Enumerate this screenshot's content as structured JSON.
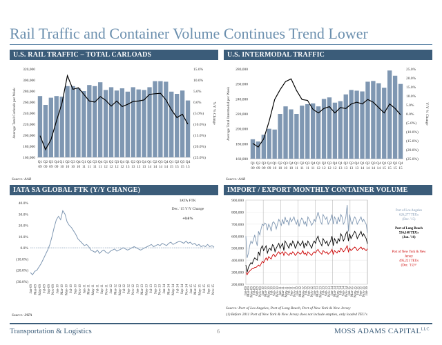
{
  "page": {
    "title": "Rail Traffic and Container Volume Continues Trend Lower",
    "footer_left": "Transportation & Logistics",
    "page_number": "6",
    "footer_right": "MOSS ADAMS CAPITAL",
    "footer_right_sup": "LLC"
  },
  "panels": {
    "rail": {
      "header": "U.S. RAIL TRAFFIC – TOTAL CARLOADS",
      "source": "Source: AAR"
    },
    "intermodal": {
      "header": "U.S. INTERMODAL TRAFFIC",
      "source": "Source: AAR"
    },
    "ftk": {
      "header": "IATA SA GLOBAL FTK (Y/Y CHANGE)",
      "source": "Source: IATA"
    },
    "container": {
      "header": "IMPORT / EXPORT MONTHLY CONTAINER VOLUME",
      "source": "Source: Port of Los Angeles, Port of Long Beach, Port of New York & New Jersey",
      "footnote": "(1) Before 2011 Port of New York & New Jersey does not include empties, only loaded TEU's"
    }
  },
  "colors": {
    "bar": "#7f97b2",
    "line": "#000000",
    "header": "#3b5c79",
    "title": "#6b8fae",
    "la": "#7f97b2",
    "lb": "#000000",
    "ny": "#cc0000"
  },
  "chart_data": [
    {
      "id": "rail",
      "type": "bar",
      "title": "U.S. RAIL TRAFFIC – TOTAL CARLOADS",
      "ylabel": "Average Total Carloads per Week",
      "y2label": "Y/Y % Change",
      "ylim": [
        160000,
        320000
      ],
      "y_ticks": [
        "160,000",
        "180,000",
        "200,000",
        "220,000",
        "240,000",
        "260,000",
        "280,000",
        "300,000",
        "320,000"
      ],
      "y2lim": [
        -25,
        15
      ],
      "y2_ticks": [
        "(25.0%)",
        "(20.0%)",
        "(15.0%)",
        "(10.0%)",
        "(5.0%)",
        "0.0%",
        "5.0%",
        "10.0%",
        "15.0%"
      ],
      "categories_top": [
        "Q1",
        "Q2",
        "Q3",
        "Q4",
        "Q1",
        "Q2",
        "Q3",
        "Q4",
        "Q1",
        "Q2",
        "Q3",
        "Q4",
        "Q1",
        "Q2",
        "Q3",
        "Q4",
        "Q1",
        "Q2",
        "Q3",
        "Q4",
        "Q1",
        "Q2",
        "Q3",
        "Q4",
        "Q1",
        "Q2",
        "Q3",
        "Q4"
      ],
      "categories_bottom": [
        "09",
        "09",
        "09",
        "09",
        "10",
        "10",
        "10",
        "10",
        "11",
        "11",
        "11",
        "11",
        "12",
        "12",
        "12",
        "12",
        "13",
        "13",
        "13",
        "13",
        "14",
        "14",
        "14",
        "14",
        "15",
        "15",
        "15",
        "15"
      ],
      "series": [
        {
          "type": "bar",
          "values": [
            271000,
            255000,
            268000,
            271000,
            270000,
            289000,
            289000,
            285000,
            280000,
            291000,
            289000,
            296000,
            282000,
            287000,
            281000,
            285000,
            279000,
            287000,
            283000,
            282000,
            287000,
            298000,
            298000,
            297000,
            279000,
            275000,
            281000,
            263000
          ]
        },
        {
          "type": "line",
          "axis": "y2",
          "values": [
            -15.2,
            -21.5,
            -17.0,
            -8.5,
            -0.5,
            12.0,
            5.8,
            6.5,
            3.5,
            0.5,
            0.0,
            2.5,
            0.8,
            -1.8,
            0.5,
            -2.0,
            -1.0,
            0.3,
            0.5,
            1.0,
            3.5,
            3.8,
            4.0,
            1.0,
            -3.5,
            -7.0,
            -5.5,
            -10.0
          ]
        }
      ]
    },
    {
      "id": "intermodal",
      "type": "bar",
      "title": "U.S. INTERMODAL TRAFFIC",
      "ylabel": "Average Total Intermodal per Week",
      "y2label": "Y/Y % Change",
      "ylim": [
        160000,
        280000
      ],
      "y_ticks": [
        "160,000",
        "180,000",
        "200,000",
        "220,000",
        "240,000",
        "260,000",
        "280,000"
      ],
      "y2lim": [
        -25,
        25
      ],
      "y2_ticks": [
        "(25.0%)",
        "(20.0%)",
        "(15.0%)",
        "(10.0%)",
        "(5.0%)",
        "0.0%",
        "5.0%",
        "10.0%",
        "15.0%",
        "20.0%",
        "25.0%"
      ],
      "categories_top": [
        "Q1",
        "Q2",
        "Q3",
        "Q4",
        "Q1",
        "Q2",
        "Q3",
        "Q4",
        "Q1",
        "Q2",
        "Q3",
        "Q4",
        "Q1",
        "Q2",
        "Q3",
        "Q4",
        "Q1",
        "Q2",
        "Q3",
        "Q4",
        "Q1",
        "Q2",
        "Q3",
        "Q4",
        "Q1",
        "Q2",
        "Q3",
        "Q4"
      ],
      "categories_bottom": [
        "09",
        "09",
        "09",
        "09",
        "10",
        "10",
        "10",
        "10",
        "11",
        "11",
        "11",
        "11",
        "12",
        "12",
        "12",
        "12",
        "13",
        "13",
        "13",
        "13",
        "14",
        "14",
        "14",
        "14",
        "15",
        "15",
        "15",
        "15"
      ],
      "series": [
        {
          "type": "bar",
          "values": [
            186000,
            183000,
            192000,
            200000,
            199000,
            220000,
            230000,
            226000,
            220000,
            231000,
            233000,
            234000,
            230000,
            240000,
            242000,
            235000,
            237000,
            246000,
            252000,
            251000,
            250000,
            263000,
            264000,
            261000,
            255000,
            278000,
            271000,
            260000
          ]
        },
        {
          "type": "line",
          "axis": "y2",
          "values": [
            -16.5,
            -18.5,
            -14.0,
            -4.0,
            8.0,
            13.5,
            18.0,
            19.5,
            13.0,
            8.0,
            7.5,
            2.5,
            0.5,
            3.0,
            4.0,
            0.5,
            3.5,
            3.0,
            5.5,
            6.5,
            5.5,
            8.0,
            6.5,
            3.5,
            0.5,
            5.5,
            3.0,
            -0.5
          ]
        }
      ]
    },
    {
      "id": "ftk",
      "type": "line",
      "title": "IATA SA GLOBAL FTK (Y/Y CHANGE)",
      "ylim": [
        -30,
        40
      ],
      "y_ticks": [
        "(30.0%)",
        "(20.0%)",
        "(10.0%)",
        "0.0%",
        "10.0%",
        "20.0%",
        "30.0%",
        "40.0%"
      ],
      "x_ticks": [
        "Jan-09",
        "Mar-09",
        "May-09",
        "Jul-09",
        "Sep-09",
        "Nov-09",
        "Jan-10",
        "Mar-10",
        "May-10",
        "Jul-10",
        "Sep-10",
        "Nov-10",
        "Jan-11",
        "Mar-11",
        "May-11",
        "Jul-11",
        "Sep-11",
        "Nov-11",
        "Jan-12",
        "Mar-12",
        "May-12",
        "Jul-12",
        "Sep-12",
        "Nov-12",
        "Jan-13",
        "Mar-13",
        "May-13",
        "Jul-13",
        "Sep-13",
        "Nov-13",
        "Jan-14",
        "Mar-14",
        "May-14",
        "Jul-14",
        "Sep-14",
        "Nov-14",
        "Jan-15",
        "Mar-15",
        "May-15",
        "Jul-15",
        "Sep-15",
        "Nov-15"
      ],
      "annotation": [
        "IATA FTK",
        "Dec. '15 Y/Y Change",
        "+0.6%"
      ],
      "series": [
        {
          "values": [
            -22,
            -24,
            -21,
            -20,
            -17,
            -14,
            -10,
            -6,
            -2,
            3,
            10,
            18,
            25,
            28,
            25,
            33,
            30,
            23,
            20,
            18,
            15,
            12,
            8,
            6,
            4,
            2,
            3,
            1,
            -2,
            -3,
            -4,
            -2,
            -5,
            -3,
            -2,
            -4,
            -5,
            -3,
            -2,
            -1,
            -3,
            -2,
            -1,
            0,
            -1,
            -2,
            -1,
            0,
            1,
            0,
            -1,
            -2,
            -1,
            0,
            1,
            2,
            3,
            1,
            2,
            3,
            2,
            4,
            3,
            2,
            4,
            5,
            3,
            4,
            5,
            6,
            5,
            4,
            6,
            4,
            5,
            3,
            4,
            2,
            3,
            1,
            2,
            1,
            3,
            1,
            2,
            0.6
          ]
        }
      ]
    },
    {
      "id": "container",
      "type": "line",
      "title": "IMPORT / EXPORT MONTHLY CONTAINER VOLUME",
      "ylim": [
        200000,
        900000
      ],
      "y_ticks": [
        "200,000",
        "300,000",
        "400,000",
        "500,000",
        "600,000",
        "700,000",
        "800,000",
        "900,000"
      ],
      "x_ticks": [
        "Jan-09",
        "Mar-09",
        "May-09",
        "Jul-09",
        "Sep-09",
        "Nov-09",
        "Jan-10",
        "Mar-10",
        "May-10",
        "Jul-10",
        "Sep-10",
        "Nov-10",
        "Jan-11",
        "Mar-11",
        "May-11",
        "Jul-11",
        "Sep-11",
        "Nov-11",
        "Jan-12",
        "Mar-12",
        "May-12",
        "Jul-12",
        "Sep-12",
        "Nov-12",
        "Jan-13",
        "Mar-13",
        "May-13",
        "Jul-13",
        "Sep-13",
        "Nov-13",
        "Jan-14",
        "Mar-14",
        "May-14",
        "Jul-14",
        "Sep-14",
        "Nov-14",
        "Jan-15",
        "Mar-15",
        "May-15",
        "Jul-15",
        "Sep-15",
        "Nov-15",
        "Jan-16"
      ],
      "annotations": [
        {
          "series": "la",
          "lines": [
            "Port of Los Angeles",
            "626,277 TEUs",
            "(Dec. '15)"
          ]
        },
        {
          "series": "lb",
          "lines": [
            "Port of Long Beach",
            "536,148 TEUs",
            "(Jan. '16)"
          ]
        },
        {
          "series": "ny",
          "lines": [
            "Port of New York & New",
            "Jersey",
            "495,221 TEUs",
            "(Dec. '15)⁽¹⁾"
          ]
        }
      ],
      "series": [
        {
          "key": "la",
          "values": [
            600000,
            420000,
            460000,
            520000,
            560000,
            540000,
            570000,
            610000,
            560000,
            520000,
            640000,
            610000,
            660000,
            700000,
            690000,
            710000,
            700000,
            650000,
            700000,
            680000,
            640000,
            710000,
            720000,
            700000,
            660000,
            700000,
            740000,
            720000,
            690000,
            740000,
            700000,
            760000,
            720000,
            730000,
            690000,
            750000,
            720000,
            740000,
            760000,
            720000,
            700000,
            740000,
            680000,
            720000,
            750000,
            740000,
            700000,
            720000,
            680000,
            760000,
            740000,
            720000,
            690000,
            710000,
            740000,
            720000,
            760000,
            800000,
            760000,
            720000,
            700000,
            780000,
            760000,
            740000,
            760000,
            700000,
            720000,
            740000,
            780000,
            700000,
            760000,
            740000,
            700000,
            760000,
            720000,
            780000,
            760000,
            700000,
            720000,
            760000,
            860000,
            640000,
            780000,
            720000,
            700000,
            740000,
            760000,
            740000,
            700000,
            720000,
            740000,
            760000,
            720000,
            740000,
            720000,
            700000,
            626277
          ]
        },
        {
          "key": "lb",
          "values": [
            360000,
            300000,
            340000,
            360000,
            380000,
            370000,
            400000,
            420000,
            410000,
            400000,
            470000,
            440000,
            500000,
            520000,
            480000,
            500000,
            520000,
            460000,
            490000,
            500000,
            480000,
            530000,
            520000,
            470000,
            500000,
            520000,
            540000,
            500000,
            520000,
            540000,
            480000,
            560000,
            540000,
            520000,
            500000,
            540000,
            520000,
            560000,
            540000,
            500000,
            520000,
            560000,
            540000,
            520000,
            540000,
            560000,
            500000,
            540000,
            520000,
            560000,
            540000,
            520000,
            500000,
            540000,
            560000,
            540000,
            580000,
            600000,
            560000,
            540000,
            520000,
            580000,
            560000,
            540000,
            560000,
            520000,
            540000,
            560000,
            600000,
            520000,
            580000,
            560000,
            540000,
            580000,
            560000,
            620000,
            600000,
            560000,
            580000,
            620000,
            640000,
            560000,
            620000,
            580000,
            600000,
            620000,
            640000,
            620000,
            580000,
            600000,
            620000,
            640000,
            600000,
            620000,
            600000,
            580000,
            536148
          ]
        },
        {
          "key": "ny",
          "values": [
            300000,
            280000,
            300000,
            310000,
            320000,
            330000,
            330000,
            340000,
            340000,
            350000,
            360000,
            350000,
            370000,
            390000,
            380000,
            400000,
            420000,
            400000,
            430000,
            420000,
            410000,
            440000,
            450000,
            430000,
            440000,
            460000,
            470000,
            450000,
            460000,
            470000,
            440000,
            470000,
            460000,
            450000,
            440000,
            460000,
            450000,
            470000,
            460000,
            440000,
            450000,
            470000,
            460000,
            450000,
            460000,
            480000,
            450000,
            460000,
            440000,
            470000,
            460000,
            450000,
            440000,
            460000,
            470000,
            460000,
            480000,
            490000,
            470000,
            460000,
            450000,
            480000,
            470000,
            460000,
            470000,
            450000,
            460000,
            470000,
            490000,
            450000,
            480000,
            470000,
            460000,
            480000,
            470000,
            500000,
            490000,
            470000,
            480000,
            500000,
            520000,
            470000,
            500000,
            480000,
            490000,
            500000,
            510000,
            500000,
            480000,
            490000,
            500000,
            510000,
            490000,
            500000,
            490000,
            480000,
            495221
          ]
        }
      ]
    }
  ]
}
